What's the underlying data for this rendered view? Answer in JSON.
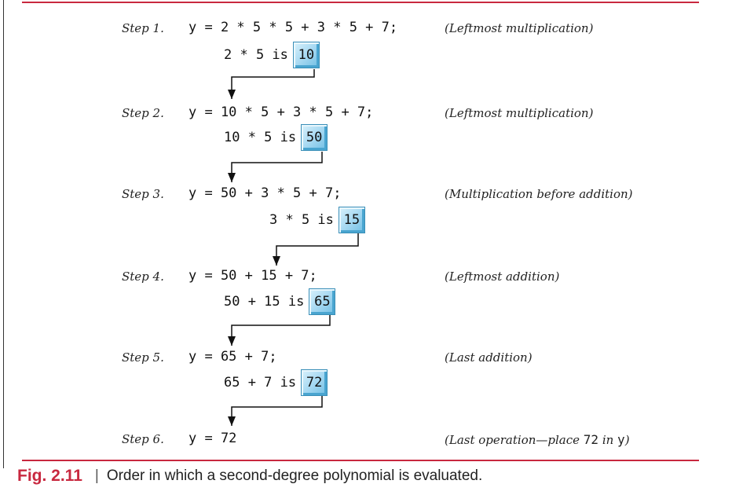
{
  "steps": [
    {
      "label": "Step 1.",
      "equation": "y = 2 * 5 * 5 + 3 * 5 + 7;",
      "sub_expr": "2 * 5 is",
      "result": "10",
      "note": "(Leftmost multiplication)"
    },
    {
      "label": "Step 2.",
      "equation": "y = 10 * 5 + 3 * 5 + 7;",
      "sub_expr": "10 * 5 is",
      "result": "50",
      "note": "(Leftmost multiplication)"
    },
    {
      "label": "Step 3.",
      "equation": "y = 50 + 3 * 5 + 7;",
      "sub_expr": "3 * 5 is",
      "result": "15",
      "note": "(Multiplication before addition)"
    },
    {
      "label": "Step 4.",
      "equation": "y = 50 + 15 + 7;",
      "sub_expr": "50 + 15 is",
      "result": "65",
      "note": "(Leftmost addition)"
    },
    {
      "label": "Step 5.",
      "equation": "y = 65 + 7;",
      "sub_expr": "65 + 7 is",
      "result": "72",
      "note": "(Last addition)"
    },
    {
      "label": "Step 6.",
      "equation": "y = 72",
      "note_prefix": "(Last operation—place ",
      "note_value": "72",
      "note_mid": " in ",
      "note_var": "y",
      "note_suffix": ")"
    }
  ],
  "caption": {
    "figure_number": "Fig. 2.11",
    "separator": "|",
    "text": "Order in which a second-degree polynomial is evaluated."
  }
}
